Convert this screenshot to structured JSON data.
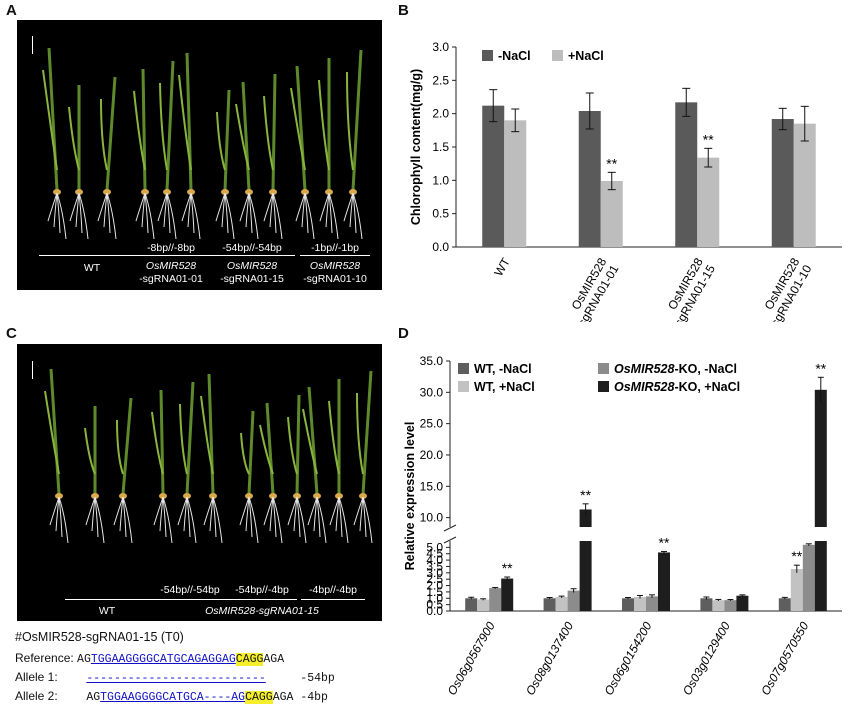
{
  "panels": {
    "A": {
      "letter": "A",
      "groups": [
        {
          "genotype": "",
          "line": "WT"
        },
        {
          "genotype": "-8bp//-8bp",
          "line": "OsMIR528",
          "line2": "-sgRNA01-01"
        },
        {
          "genotype": "-54bp//-54bp",
          "line": "OsMIR528",
          "line2": "-sgRNA01-15"
        },
        {
          "genotype": "-1bp//-1bp",
          "line": "OsMIR528",
          "line2": "-sgRNA01-10"
        }
      ]
    },
    "B": {
      "letter": "B",
      "legend": [
        "-NaCl",
        "+NaCl"
      ],
      "ylabel": "Chlorophyll content(mg/g)",
      "yticks": [
        "0.0",
        "0.5",
        "1.0",
        "1.5",
        "2.0",
        "2.5",
        "3.0"
      ],
      "xlabels": [
        {
          "l1": "WT",
          "l2": ""
        },
        {
          "l1": "OsMIR528",
          "l2": "-sgRNA01-01"
        },
        {
          "l1": "OsMIR528",
          "l2": "-sgRNA01-15"
        },
        {
          "l1": "OsMIR528",
          "l2": "-sgRNA01-10"
        }
      ],
      "sig": "**"
    },
    "C": {
      "letter": "C",
      "groups": [
        {
          "genotype": "",
          "line": "WT"
        },
        {
          "genotype": "-54bp//-54bp",
          "line": ""
        },
        {
          "genotype": "-54bp//-4bp",
          "line": ""
        },
        {
          "genotype": "-4bp//-4bp",
          "line": ""
        }
      ],
      "line_label": "OsMIR528-sgRNA01-15"
    },
    "D": {
      "letter": "D",
      "legend": [
        "WT, -NaCl",
        "OsMIR528-KO, -NaCl",
        "WT, +NaCl",
        "OsMIR528-KO, +NaCl"
      ],
      "ylabel": "Relative expression level",
      "yticks_low": [
        "0.0",
        "0.5",
        "1.0",
        "1.5",
        "2.0",
        "2.5",
        "3.0",
        "3.5",
        "4.0",
        "4.5",
        "5.0"
      ],
      "yticks_high": [
        "10.0",
        "15.0",
        "20.0",
        "25.0",
        "30.0",
        "35.0"
      ],
      "sig": "**"
    }
  },
  "sequence": {
    "title": "#OsMIR528-sgRNA01-15 (T0)",
    "ref_label": "Reference:",
    "ref_pre": "AG",
    "ref_target": "TGGAAGGGGCATGCAGAGGAG",
    "ref_pam": "CAGG",
    "ref_post": "AGA",
    "a1_label": "Allele  1:",
    "a1_seq": "--------------------------",
    "a1_note": "-54bp",
    "a2_label": "Allele  2:",
    "a2_pre": "AG",
    "a2_target": "TGGAAGGGGCATGCA----AG",
    "a2_pam": "CAGG",
    "a2_post": "AGA",
    "a2_note": "-4bp"
  },
  "chart_data": [
    {
      "type": "bar",
      "title": "",
      "ylabel": "Chlorophyll content(mg/g)",
      "categories": [
        "WT",
        "OsMIR528-sgRNA01-01",
        "OsMIR528-sgRNA01-15",
        "OsMIR528-sgRNA01-10"
      ],
      "series": [
        {
          "name": "-NaCl",
          "values": [
            2.12,
            2.04,
            2.17,
            1.92
          ],
          "errors": [
            0.24,
            0.27,
            0.21,
            0.16
          ],
          "color": "#5a5a5a"
        },
        {
          "name": "+NaCl",
          "values": [
            1.9,
            0.99,
            1.34,
            1.85
          ],
          "errors": [
            0.17,
            0.13,
            0.14,
            0.26
          ],
          "color": "#bdbdbd"
        }
      ],
      "significance": [
        null,
        "**",
        "**",
        null
      ],
      "ylim": [
        0,
        3.0
      ]
    },
    {
      "type": "bar",
      "title": "",
      "ylabel": "Relative expression level",
      "categories": [
        "Os06g0567900",
        "Os08g0137400",
        "Os06g0154200",
        "Os03g0129400",
        "Os07g0570550"
      ],
      "series": [
        {
          "name": "WT, -NaCl",
          "values": [
            1.0,
            1.0,
            1.0,
            1.0,
            1.0
          ],
          "errors": [
            0.08,
            0.06,
            0.06,
            0.1,
            0.07
          ],
          "color": "#5e5e5e"
        },
        {
          "name": "WT, +NaCl",
          "values": [
            0.9,
            1.1,
            1.1,
            0.85,
            3.3
          ],
          "errors": [
            0.06,
            0.07,
            0.12,
            0.06,
            0.3
          ],
          "color": "#c2c2c2"
        },
        {
          "name": "OsMIR528-KO, -NaCl",
          "values": [
            1.8,
            1.6,
            1.15,
            0.85,
            5.2
          ],
          "errors": [
            0.05,
            0.15,
            0.12,
            0.05,
            0.08
          ],
          "color": "#8c8c8c"
        },
        {
          "name": "OsMIR528-KO, +NaCl",
          "values": [
            2.55,
            11.3,
            4.6,
            1.2,
            30.4
          ],
          "errors": [
            0.12,
            0.9,
            0.08,
            0.07,
            2.0
          ],
          "color": "#1e1e1e"
        }
      ],
      "significance": [
        "**",
        "**",
        "**",
        null,
        "**"
      ],
      "ylim": [
        0,
        35.0
      ],
      "axis_break": [
        5.5,
        8.5
      ]
    }
  ]
}
